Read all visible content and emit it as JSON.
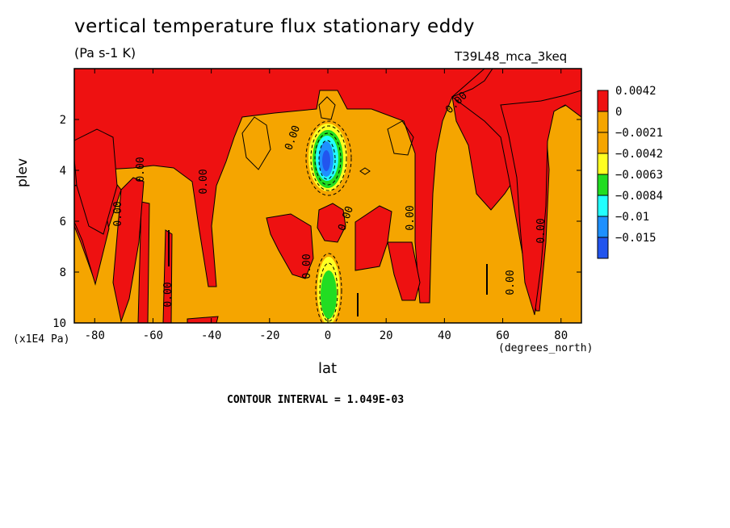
{
  "chart_data": {
    "type": "heatmap",
    "title": "vertical temperature flux stationary eddy",
    "subtitle": "(Pa s-1 K)",
    "run_label": "T39L48_mca_3keq",
    "xlabel": "lat",
    "xunit": "(degrees_north)",
    "ylabel": "plev",
    "yunit": "(x1E4 Pa)",
    "xlim": [
      -87,
      87
    ],
    "ylim": [
      0,
      10
    ],
    "y_inverted": true,
    "x_ticks": [
      -80,
      -60,
      -40,
      -20,
      0,
      20,
      40,
      60,
      80
    ],
    "x_tick_labels": [
      "-80",
      "-60",
      "-40",
      "-20",
      "0",
      "20",
      "40",
      "60",
      "80"
    ],
    "y_ticks": [
      2,
      4,
      6,
      8,
      10
    ],
    "y_tick_labels": [
      "2",
      "4",
      "6",
      "8",
      "10"
    ],
    "contour_interval": "CONTOUR INTERVAL = 1.049E-03",
    "contour_label": "0.00",
    "legend": {
      "placement": "right",
      "entries": [
        {
          "label": "0.0042",
          "color": "#ee1111"
        },
        {
          "label": "0",
          "color": "#f5a500"
        },
        {
          "label": "−0.0021",
          "color": "#f5a500"
        },
        {
          "label": "−0.0042",
          "color": "#ffff22"
        },
        {
          "label": "−0.0063",
          "color": "#22dd22"
        },
        {
          "label": "−0.0084",
          "color": "#22ffff"
        },
        {
          "label": "−0.01",
          "color": "#1e90ff"
        },
        {
          "label": "−0.015",
          "color": "#2255ee"
        }
      ]
    },
    "background_color": "#f5a500",
    "positive_color": "#ee1111"
  }
}
